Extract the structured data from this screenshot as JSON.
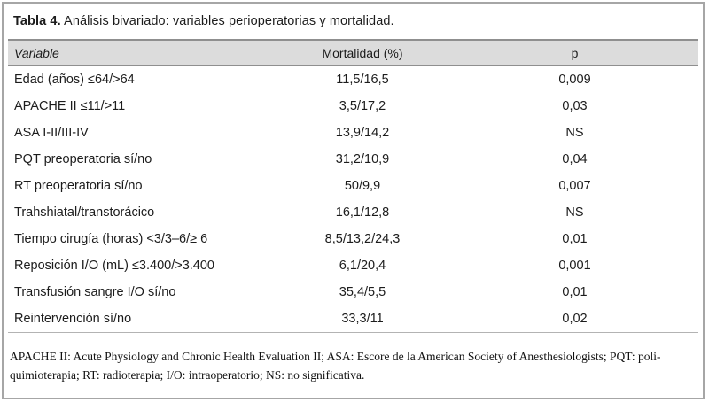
{
  "table": {
    "title_bold": "Tabla 4.",
    "title_rest": " Análisis bivariado: variables perioperatorias y mortalidad.",
    "columns": [
      "Variable",
      "Mortalidad (%)",
      "p"
    ],
    "rows": [
      {
        "variable": "Edad (años) ≤64/>64",
        "mortalidad": "11,5/16,5",
        "p": "0,009"
      },
      {
        "variable": "APACHE II ≤11/>11",
        "mortalidad": "3,5/17,2",
        "p": "0,03"
      },
      {
        "variable": "ASA I-II/III-IV",
        "mortalidad": "13,9/14,2",
        "p": "NS"
      },
      {
        "variable": "PQT preoperatoria sí/no",
        "mortalidad": "31,2/10,9",
        "p": "0,04"
      },
      {
        "variable": "RT preoperatoria sí/no",
        "mortalidad": "50/9,9",
        "p": "0,007"
      },
      {
        "variable": "Trahshiatal/transtorácico",
        "mortalidad": "16,1/12,8",
        "p": "NS"
      },
      {
        "variable": "Tiempo cirugía (horas) <3/3–6/≥ 6",
        "mortalidad": "8,5/13,2/24,3",
        "p": "0,01"
      },
      {
        "variable": "Reposición I/O (mL) ≤3.400/>3.400",
        "mortalidad": "6,1/20,4",
        "p": "0,001"
      },
      {
        "variable": "Transfusión sangre I/O sí/no",
        "mortalidad": "35,4/5,5",
        "p": "0,01"
      },
      {
        "variable": "Reintervención sí/no",
        "mortalidad": "33,3/11",
        "p": "0,02"
      }
    ],
    "footnote": "APACHE II: Acute Physiology and Chronic Health Evaluation II; ASA: Escore de la American Society of Anesthesiologists; PQT: poli-quimioterapia; RT: radioterapia; I/O: intraoperatorio; NS: no significativa.",
    "colors": {
      "header_bg": "#dcdcdc",
      "rule_dark": "#8f8f8f",
      "rule_light": "#b3b3b3",
      "frame_border": "#a6a6a6",
      "text": "#1c1c1c"
    }
  }
}
